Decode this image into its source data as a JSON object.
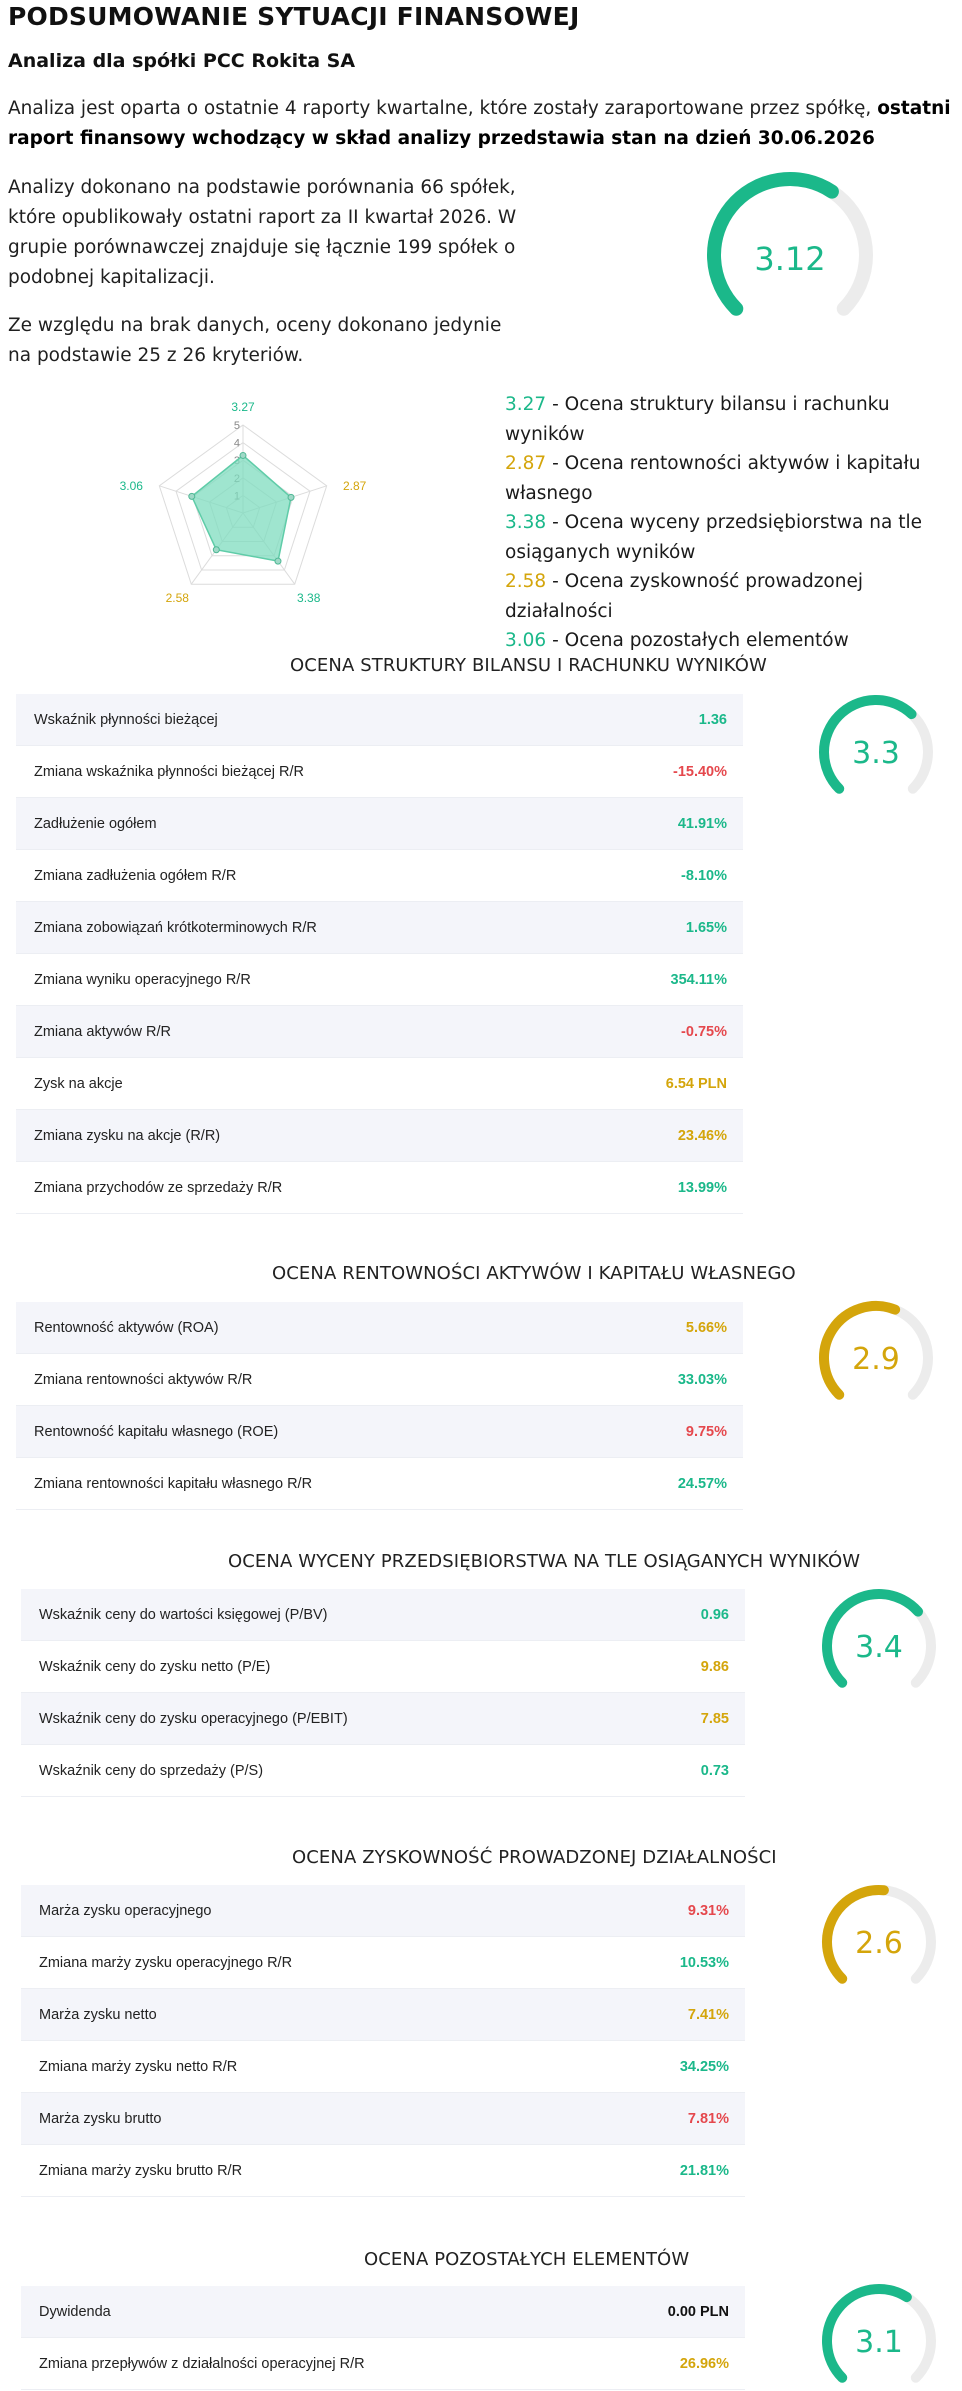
{
  "header": {
    "title": "PODSUMOWANIE SYTUACJI FINANSOWEJ",
    "company_line": "Analiza dla spółki PCC Rokita SA"
  },
  "intro": {
    "p1_start": "Analiza jest oparta o ostatnie 4 raporty kwartalne, które zostały zaraportowane przez spółkę, ",
    "p1_bold": "ostatni raport finansowy wchodzący w skład analizy przedstawia stan na dzień 30.06.2026",
    "p2": "Analizy dokonano na podstawie porównania 66 spółek, które opublikowały ostatni raport za II kwartał 2026. W grupie porównawczej znajduje się łącznie 199 spółek o podobnej kapitalizacji.",
    "p3": "Ze względu na brak danych, oceny dokonano jedynie na podstawie 25 z 26 kryteriów."
  },
  "overall": {
    "score": "3.12",
    "score_value": 3.12,
    "max": 5,
    "color": "#1bb88a"
  },
  "radar": {
    "scale_labels": [
      "1",
      "2",
      "3",
      "4",
      "5"
    ],
    "axis_labels": [
      "3.27",
      "2.87",
      "3.38",
      "2.58",
      "3.06"
    ],
    "values": [
      3.27,
      2.87,
      3.38,
      2.58,
      3.06
    ],
    "axis_colors": [
      "#1bb88a",
      "#d4a50b",
      "#1bb88a",
      "#d4a50b",
      "#1bb88a"
    ],
    "fill_color": "#7fdcbf"
  },
  "legend": [
    {
      "num": "3.27",
      "text": " - Ocena struktury bilansu i rachunku wyników",
      "color": "teal"
    },
    {
      "num": "2.87",
      "text": " - Ocena rentowności aktywów i kapitału własnego",
      "color": "gold"
    },
    {
      "num": "3.38",
      "text": " - Ocena wyceny przedsiębiorstwa na tle osiąganych wyników",
      "color": "teal"
    },
    {
      "num": "2.58",
      "text": " - Ocena zyskowność prowadzonej działalności",
      "color": "gold"
    },
    {
      "num": "3.06",
      "text": " - Ocena pozostałych elementów",
      "color": "teal"
    }
  ],
  "sections": [
    {
      "title": "OCENA STRUKTURY BILANSU I RACHUNKU WYNIKÓW",
      "score": "3.3",
      "score_value": 3.3,
      "color": "#1bb88a",
      "rows": [
        {
          "label": "Wskaźnik płynności bieżącej",
          "value": "1.36",
          "color": "teal"
        },
        {
          "label": "Zmiana wskaźnika płynności bieżącej R/R",
          "value": "-15.40%",
          "color": "red"
        },
        {
          "label": "Zadłużenie ogółem",
          "value": "41.91%",
          "color": "teal"
        },
        {
          "label": "Zmiana zadłużenia ogółem R/R",
          "value": "-8.10%",
          "color": "teal"
        },
        {
          "label": "Zmiana zobowiązań krótkoterminowych R/R",
          "value": "1.65%",
          "color": "teal"
        },
        {
          "label": "Zmiana wyniku operacyjnego R/R",
          "value": "354.11%",
          "color": "teal"
        },
        {
          "label": "Zmiana aktywów R/R",
          "value": "-0.75%",
          "color": "red"
        },
        {
          "label": "Zysk na akcje",
          "value": "6.54 PLN",
          "color": "gold"
        },
        {
          "label": "Zmiana zysku na akcje (R/R)",
          "value": "23.46%",
          "color": "gold"
        },
        {
          "label": "Zmiana przychodów ze sprzedaży R/R",
          "value": "13.99%",
          "color": "teal"
        }
      ]
    },
    {
      "title": "OCENA RENTOWNOŚCI AKTYWÓW I KAPITAŁU WŁASNEGO",
      "score": "2.9",
      "score_value": 2.9,
      "color": "#d4a50b",
      "rows": [
        {
          "label": "Rentowność aktywów (ROA)",
          "value": "5.66%",
          "color": "gold"
        },
        {
          "label": "Zmiana rentowności aktywów R/R",
          "value": "33.03%",
          "color": "teal"
        },
        {
          "label": "Rentowność kapitału własnego (ROE)",
          "value": "9.75%",
          "color": "red"
        },
        {
          "label": "Zmiana rentowności kapitału własnego R/R",
          "value": "24.57%",
          "color": "teal"
        }
      ]
    },
    {
      "title": "OCENA WYCENY PRZEDSIĘBIORSTWA NA TLE OSIĄGANYCH WYNIKÓW",
      "score": "3.4",
      "score_value": 3.4,
      "color": "#1bb88a",
      "rows": [
        {
          "label": "Wskaźnik ceny do wartości księgowej (P/BV)",
          "value": "0.96",
          "color": "teal"
        },
        {
          "label": "Wskaźnik ceny do zysku netto (P/E)",
          "value": "9.86",
          "color": "gold"
        },
        {
          "label": "Wskaźnik ceny do zysku operacyjnego (P/EBIT)",
          "value": "7.85",
          "color": "gold"
        },
        {
          "label": "Wskaźnik ceny do sprzedaży (P/S)",
          "value": "0.73",
          "color": "teal"
        }
      ]
    },
    {
      "title": "OCENA ZYSKOWNOŚĆ PROWADZONEJ DZIAŁALNOŚCI",
      "score": "2.6",
      "score_value": 2.6,
      "color": "#d4a50b",
      "rows": [
        {
          "label": "Marża zysku operacyjnego",
          "value": "9.31%",
          "color": "red"
        },
        {
          "label": "Zmiana marży zysku operacyjnego R/R",
          "value": "10.53%",
          "color": "teal"
        },
        {
          "label": "Marża zysku netto",
          "value": "7.41%",
          "color": "gold"
        },
        {
          "label": "Zmiana marży zysku netto R/R",
          "value": "34.25%",
          "color": "teal"
        },
        {
          "label": "Marża zysku brutto",
          "value": "7.81%",
          "color": "red"
        },
        {
          "label": "Zmiana marży zysku brutto R/R",
          "value": "21.81%",
          "color": "teal"
        }
      ]
    },
    {
      "title": "OCENA POZOSTAŁYCH ELEMENTÓW",
      "score": "3.1",
      "score_value": 3.1,
      "color": "#1bb88a",
      "rows": [
        {
          "label": "Dywidenda",
          "value": "0.00 PLN",
          "color": "dark"
        },
        {
          "label": "Zmiana przepływów z działalności operacyjnej R/R",
          "value": "26.96%",
          "color": "gold"
        }
      ]
    }
  ]
}
